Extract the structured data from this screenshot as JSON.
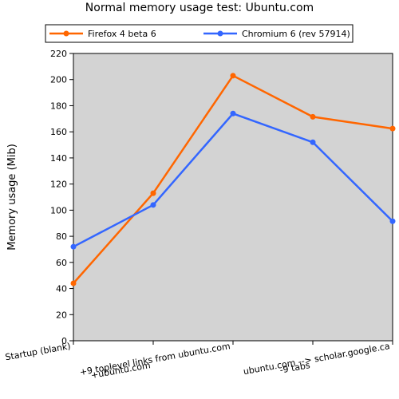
{
  "chart_data": {
    "type": "line",
    "title": "Normal memory usage test: Ubuntu.com",
    "xlabel": "",
    "ylabel": "Memory usage (Mib)",
    "ylim": [
      0,
      220
    ],
    "yticks": [
      0,
      20,
      40,
      60,
      80,
      100,
      120,
      140,
      160,
      180,
      200,
      220
    ],
    "categories": [
      "Startup (blank)",
      "+ubuntu.com",
      "+9 toplevel links from ubuntu.com",
      "-9 tabs",
      "ubuntu.com --> scholar.google.ca"
    ],
    "series": [
      {
        "name": "Firefox 4 beta 6",
        "color": "#ff6600",
        "values": [
          44,
          113,
          203,
          171.5,
          162.5
        ]
      },
      {
        "name": "Chromium 6 (rev 57914)",
        "color": "#3366ff",
        "values": [
          72,
          104,
          174,
          152,
          91.5
        ]
      }
    ],
    "grid": false,
    "plot_background": "#d3d3d3",
    "legend_position": "top"
  }
}
